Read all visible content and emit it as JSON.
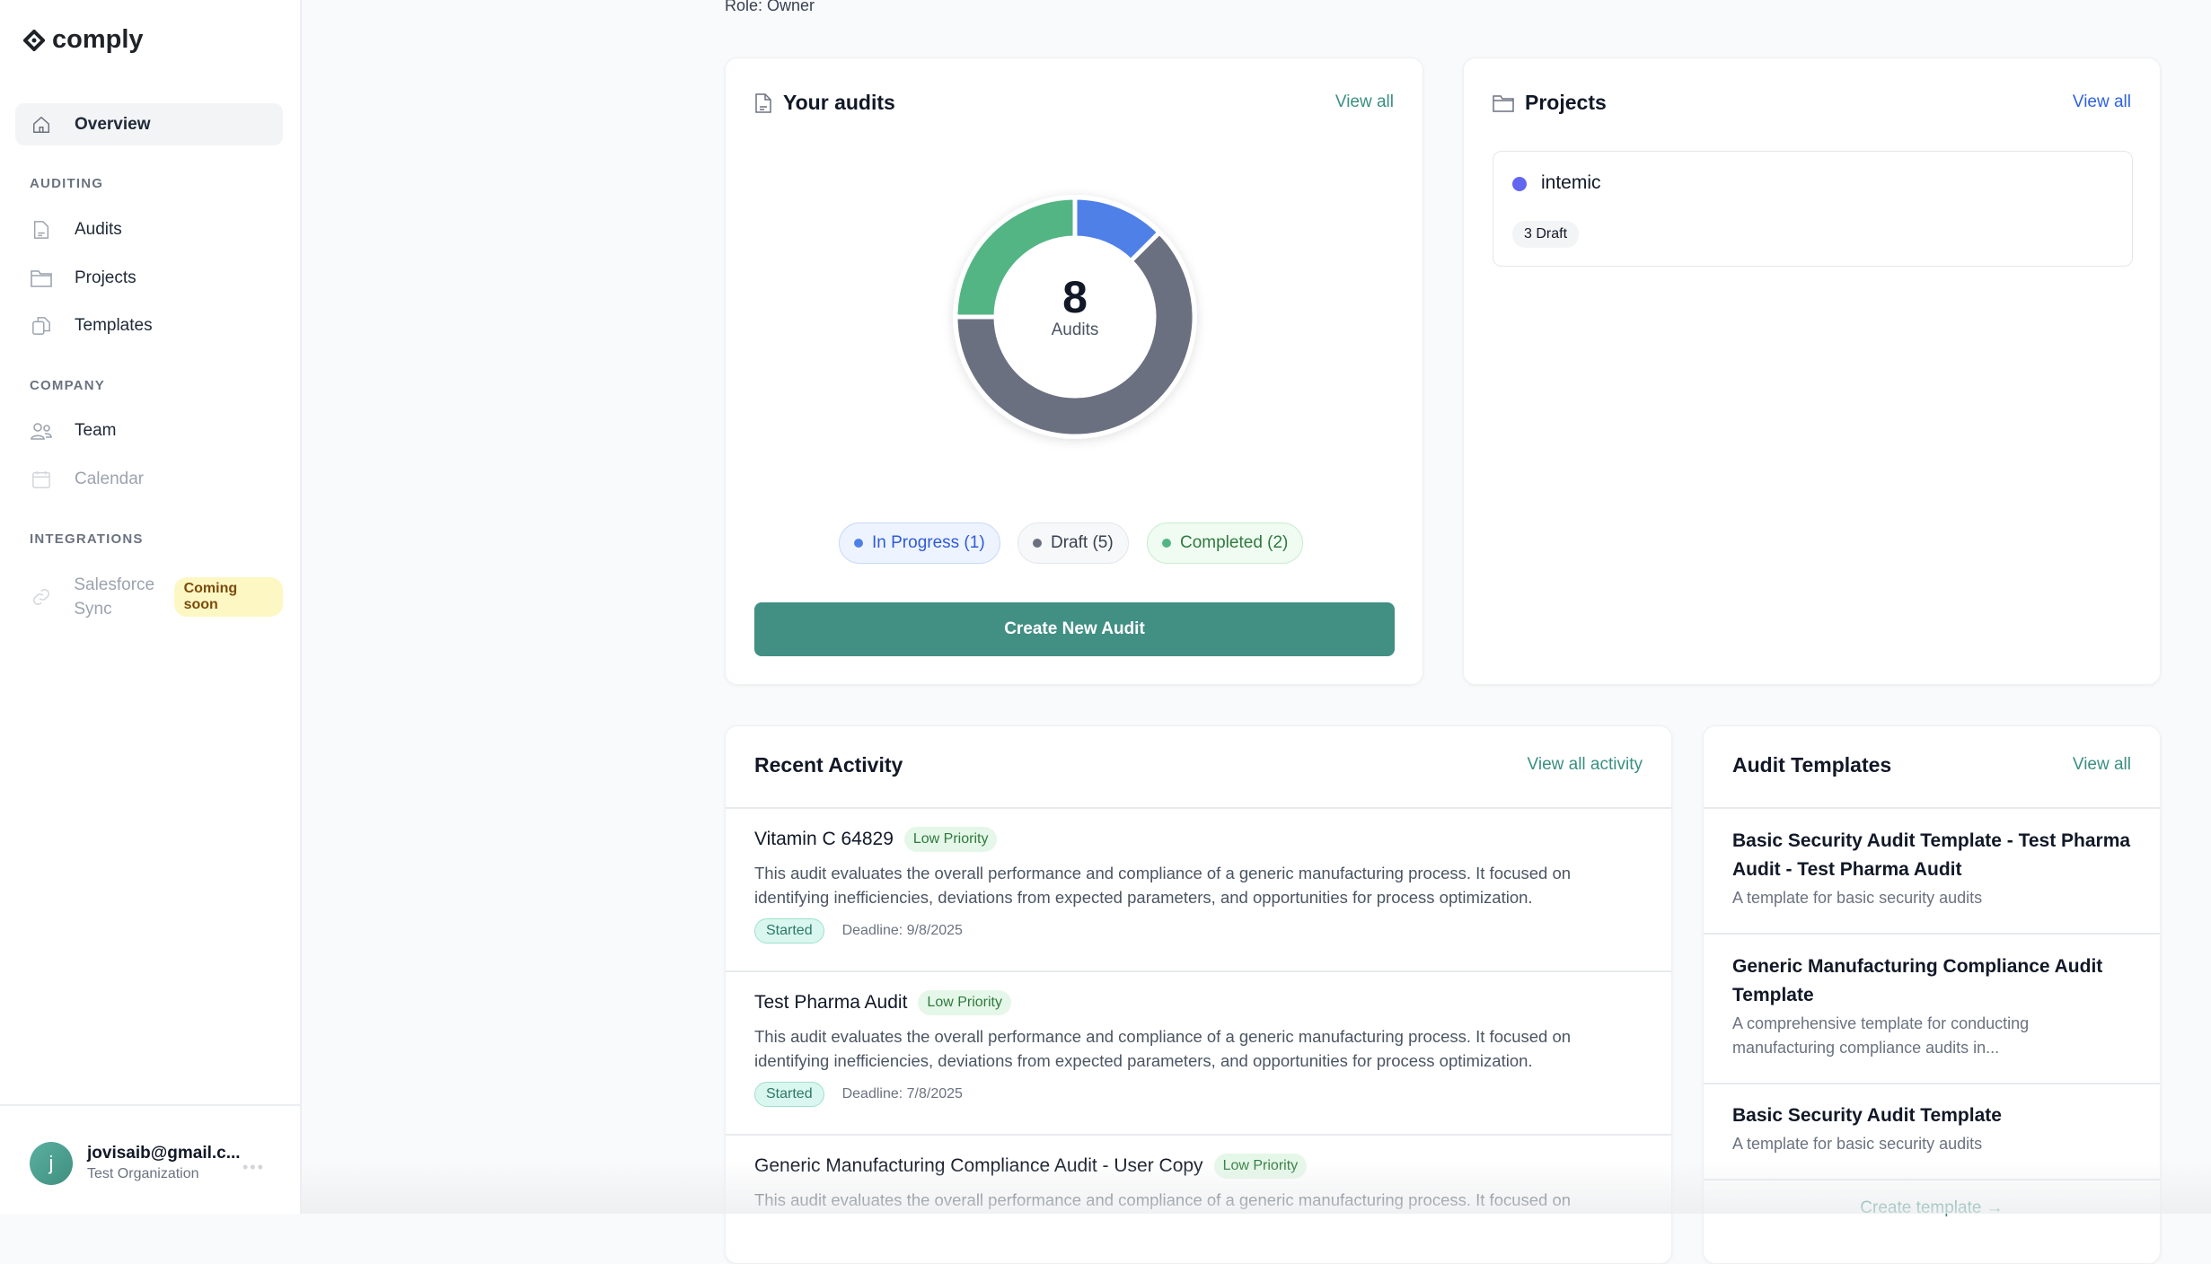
{
  "brand": {
    "name": "comply"
  },
  "sidebar": {
    "overview": "Overview",
    "sections": [
      {
        "label": "AUDITING",
        "items": [
          {
            "label": "Audits"
          },
          {
            "label": "Projects"
          },
          {
            "label": "Templates"
          }
        ]
      },
      {
        "label": "COMPANY",
        "items": [
          {
            "label": "Team"
          },
          {
            "label": "Calendar"
          }
        ]
      },
      {
        "label": "INTEGRATIONS",
        "items": [
          {
            "label": "Salesforce Sync",
            "badge": "Coming soon"
          }
        ]
      }
    ],
    "user": {
      "initial": "j",
      "email": "jovisaib@gmail.c...",
      "org": "Test Organization",
      "more": "•••"
    }
  },
  "header": {
    "role": "Role: Owner"
  },
  "your_audits": {
    "title": "Your audits",
    "view_all": "View all",
    "total": "8",
    "total_label": "Audits",
    "create_button": "Create New Audit",
    "legend": [
      {
        "label": "In Progress (1)"
      },
      {
        "label": "Draft (5)"
      },
      {
        "label": "Completed (2)"
      }
    ]
  },
  "chart_data": {
    "type": "pie",
    "donut": true,
    "categories": [
      "In Progress",
      "Draft",
      "Completed"
    ],
    "values": [
      1,
      5,
      2
    ],
    "colors": [
      "#4f80e8",
      "#6b7080",
      "#53b584"
    ]
  },
  "projects": {
    "title": "Projects",
    "view_all": "View all",
    "items": [
      {
        "name": "intemic",
        "color": "#6366f1",
        "status": "3 Draft"
      }
    ]
  },
  "recent_activity": {
    "title": "Recent Activity",
    "view_all": "View all activity",
    "items": [
      {
        "title": "Vitamin C 64829",
        "priority": "Low Priority",
        "description": "This audit evaluates the overall performance and compliance of a generic manufacturing process. It focused on identifying inefficiencies, deviations from expected parameters, and opportunities for process optimization.",
        "status": "Started",
        "deadline": "Deadline: 9/8/2025"
      },
      {
        "title": "Test Pharma Audit",
        "priority": "Low Priority",
        "description": "This audit evaluates the overall performance and compliance of a generic manufacturing process. It focused on identifying inefficiencies, deviations from expected parameters, and opportunities for process optimization.",
        "status": "Started",
        "deadline": "Deadline: 7/8/2025"
      },
      {
        "title": "Generic Manufacturing Compliance Audit - User Copy",
        "priority": "Low Priority",
        "description": "This audit evaluates the overall performance and compliance of a generic manufacturing process. It focused on"
      }
    ]
  },
  "audit_templates": {
    "title": "Audit Templates",
    "view_all": "View all",
    "create": "Create template →",
    "items": [
      {
        "title": "Basic Security Audit Template - Test Pharma Audit - Test Pharma Audit",
        "description": "A template for basic security audits"
      },
      {
        "title": "Generic Manufacturing Compliance Audit Template",
        "description": "A comprehensive template for conducting manufacturing compliance audits in..."
      },
      {
        "title": "Basic Security Audit Template",
        "description": "A template for basic security audits"
      }
    ]
  }
}
